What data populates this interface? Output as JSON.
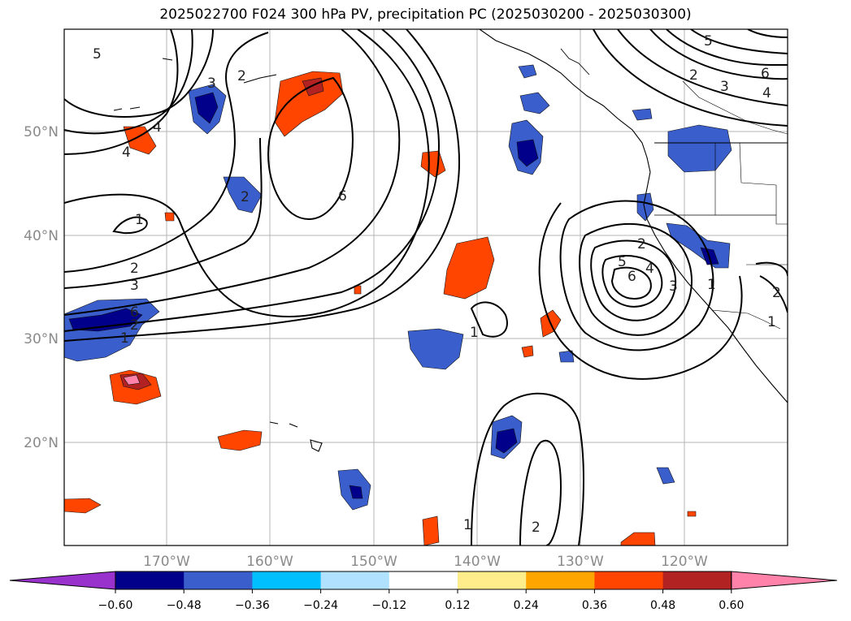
{
  "title": "2025022700 F024 300 hPa PV, precipitation PC (2025030200 - 2025030300)",
  "lat_labels": [
    "50°N",
    "40°N",
    "30°N",
    "20°N"
  ],
  "lon_labels": [
    "170°W",
    "160°W",
    "150°W",
    "140°W",
    "130°W",
    "120°W"
  ],
  "contour_labels": [
    "5",
    "2",
    "3",
    "4",
    "4",
    "6",
    "1",
    "2",
    "3",
    "1",
    "6",
    "2",
    "5",
    "4",
    "3",
    "6",
    "2",
    "3",
    "4",
    "6",
    "5",
    "1",
    "2",
    "1",
    "1",
    "2",
    "1",
    "2",
    "2"
  ],
  "colorbar": {
    "ticks": [
      "−0.60",
      "−0.48",
      "−0.36",
      "−0.24",
      "−0.12",
      "0.12",
      "0.24",
      "0.36",
      "0.48",
      "0.60"
    ],
    "colors": [
      "#9932cc",
      "#00008b",
      "#3a5fcd",
      "#00bfff",
      "#b0e2ff",
      "#ffffff",
      "#ffec8b",
      "#ffa500",
      "#ff4500",
      "#b22222",
      "#ff82ab"
    ]
  }
}
